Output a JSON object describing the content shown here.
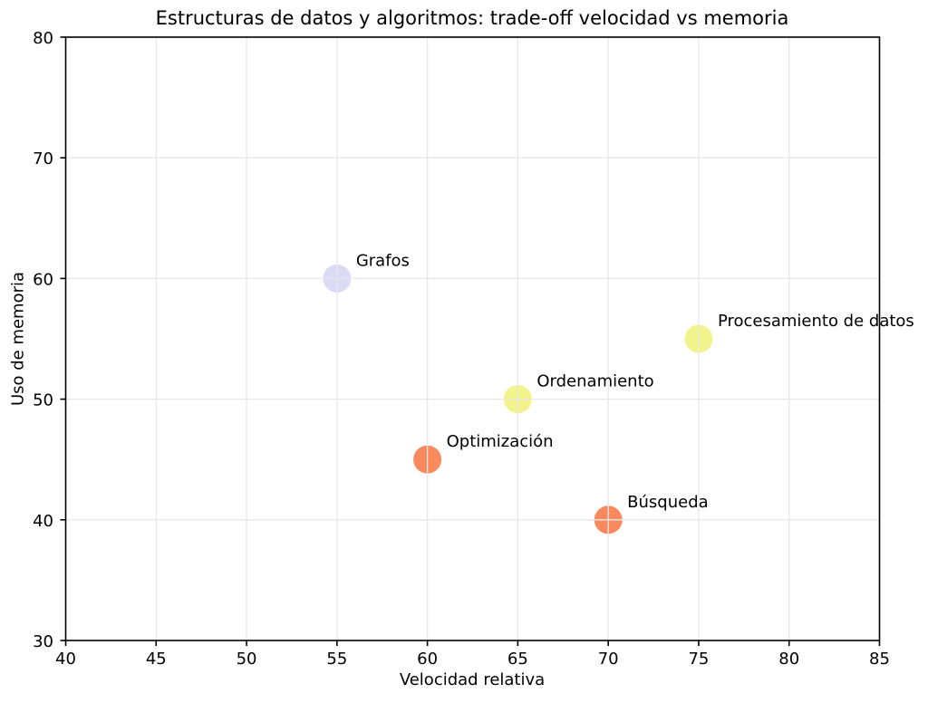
{
  "chart_data": {
    "type": "scatter",
    "title": "Estructuras de datos y algoritmos: trade-off velocidad vs memoria",
    "xlabel": "Velocidad relativa",
    "ylabel": "Uso de memoria",
    "xlim": [
      40,
      85
    ],
    "ylim": [
      30,
      80
    ],
    "xticks": [
      40,
      45,
      50,
      55,
      60,
      65,
      70,
      75,
      80,
      85
    ],
    "yticks": [
      30,
      40,
      50,
      60,
      70,
      80
    ],
    "grid": true,
    "legend": "none",
    "points": [
      {
        "label": "Grafos",
        "x": 55,
        "y": 60,
        "color": "#dbdbf5"
      },
      {
        "label": "Procesamiento de datos",
        "x": 75,
        "y": 55,
        "color": "#f2f48b"
      },
      {
        "label": "Ordenamiento",
        "x": 65,
        "y": 50,
        "color": "#f2f48b"
      },
      {
        "label": "Optimización",
        "x": 60,
        "y": 45,
        "color": "#f98a5e"
      },
      {
        "label": "Búsqueda",
        "x": 70,
        "y": 40,
        "color": "#f98a5e"
      }
    ]
  }
}
